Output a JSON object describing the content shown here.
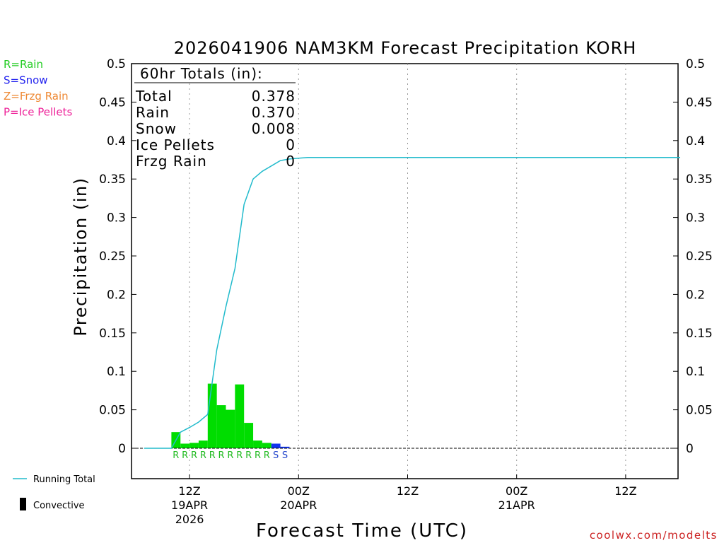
{
  "chart_data": {
    "type": "bar",
    "title": "2026041906 NAM3KM Forecast Precipitation KORH",
    "xlabel": "Forecast Time (UTC)",
    "ylabel": "Precipitation (in)",
    "ylim": [
      -0.04,
      0.5
    ],
    "yticks": [
      "0.5",
      "0.45",
      "0.4",
      "0.35",
      "0.3",
      "0.25",
      "0.2",
      "0.15",
      "0.1",
      "0.05",
      "0"
    ],
    "ytick_values": [
      0.5,
      0.45,
      0.4,
      0.35,
      0.3,
      0.25,
      0.2,
      0.15,
      0.1,
      0.05,
      0
    ],
    "x_range_hours": [
      0,
      60
    ],
    "xticks": [
      {
        "hour": 6,
        "label": "12Z",
        "date": "19APR",
        "year": "2026"
      },
      {
        "hour": 18,
        "label": "00Z",
        "date": "20APR",
        "year": ""
      },
      {
        "hour": 30,
        "label": "12Z",
        "date": "",
        "year": ""
      },
      {
        "hour": 42,
        "label": "00Z",
        "date": "21APR",
        "year": ""
      },
      {
        "hour": 54,
        "label": "12Z",
        "date": "",
        "year": ""
      }
    ],
    "grid": "vertical dotted at tick hours",
    "legend_position": "left",
    "totals_box": {
      "header": "60hr Totals (in):",
      "rows": [
        {
          "label": "Total",
          "value": "0.378"
        },
        {
          "label": "Rain",
          "value": "0.370"
        },
        {
          "label": "Snow",
          "value": "0.008"
        },
        {
          "label": "Ice Pellets",
          "value": "0"
        },
        {
          "label": "Frzg Rain",
          "value": "0"
        }
      ]
    },
    "type_legend": [
      {
        "label": "R=Rain",
        "color": "#22cc22"
      },
      {
        "label": "S=Snow",
        "color": "#2222ee"
      },
      {
        "label": "Z=Frzg Rain",
        "color": "#ee8833"
      },
      {
        "label": "P=Ice Pellets",
        "color": "#ee2299"
      }
    ],
    "series_legend": [
      {
        "label": "Running Total",
        "color": "#22bbcc",
        "kind": "line"
      },
      {
        "label": "Convective",
        "color": "#000000",
        "kind": "bar"
      }
    ],
    "bars": [
      {
        "hour": 4.5,
        "value": 0.021,
        "type": "R"
      },
      {
        "hour": 5.5,
        "value": 0.006,
        "type": "R"
      },
      {
        "hour": 6.5,
        "value": 0.007,
        "type": "R"
      },
      {
        "hour": 7.5,
        "value": 0.01,
        "type": "R"
      },
      {
        "hour": 8.5,
        "value": 0.084,
        "type": "R"
      },
      {
        "hour": 9.5,
        "value": 0.056,
        "type": "R"
      },
      {
        "hour": 10.5,
        "value": 0.05,
        "type": "R"
      },
      {
        "hour": 11.5,
        "value": 0.083,
        "type": "R"
      },
      {
        "hour": 12.5,
        "value": 0.033,
        "type": "R"
      },
      {
        "hour": 13.5,
        "value": 0.01,
        "type": "R"
      },
      {
        "hour": 14.5,
        "value": 0.007,
        "type": "R"
      },
      {
        "hour": 15.5,
        "value": 0.006,
        "type": "S"
      },
      {
        "hour": 16.5,
        "value": 0.002,
        "type": "S"
      }
    ],
    "running_total": {
      "name": "Running Total",
      "x": [
        1,
        2,
        3,
        4,
        5,
        6,
        7,
        8,
        9,
        10,
        11,
        12,
        13,
        14,
        15,
        16,
        17,
        18,
        19,
        20,
        24,
        30,
        36,
        42,
        48,
        54,
        60
      ],
      "y": [
        0,
        0,
        0,
        0,
        0.021,
        0.027,
        0.034,
        0.044,
        0.128,
        0.184,
        0.234,
        0.317,
        0.35,
        0.36,
        0.367,
        0.374,
        0.376,
        0.377,
        0.378,
        0.378,
        0.378,
        0.378,
        0.378,
        0.378,
        0.378,
        0.378,
        0.378
      ]
    }
  },
  "credit": "coolwx.com/modelts"
}
